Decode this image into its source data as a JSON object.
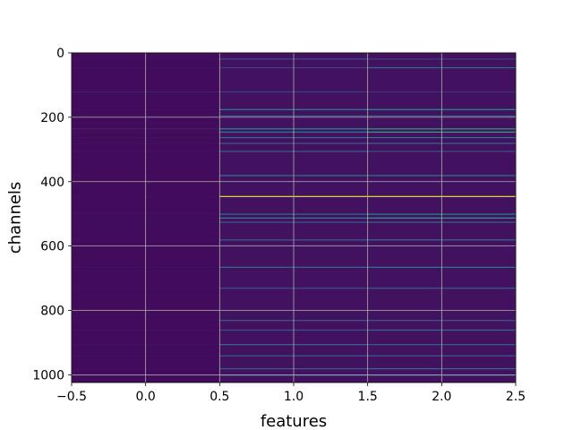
{
  "chart_data": {
    "type": "heatmap",
    "title": "",
    "xlabel": "features",
    "ylabel": "channels",
    "xlim": [
      -0.5,
      2.5
    ],
    "ylim": [
      1024,
      0
    ],
    "x_ticks": [
      -0.5,
      0.0,
      0.5,
      1.0,
      1.5,
      2.0,
      2.5
    ],
    "x_tick_labels": [
      "−0.5",
      "0.0",
      "0.5",
      "1.0",
      "1.5",
      "2.0",
      "2.5"
    ],
    "y_ticks": [
      0,
      200,
      400,
      600,
      800,
      1000
    ],
    "y_tick_labels": [
      "0",
      "200",
      "400",
      "600",
      "800",
      "1000"
    ],
    "grid": true,
    "colormap": "viridis",
    "columns": [
      0,
      1,
      2
    ],
    "n_channels": 1024,
    "base_values": [
      0.03,
      0.05,
      0.05
    ],
    "notable_rows": [
      {
        "channel": 18,
        "values": [
          0.05,
          0.25,
          0.2
        ]
      },
      {
        "channel": 45,
        "values": [
          0.05,
          0.2,
          0.35
        ]
      },
      {
        "channel": 120,
        "values": [
          0.1,
          0.2,
          0.15
        ]
      },
      {
        "channel": 175,
        "values": [
          0.05,
          0.45,
          0.5
        ]
      },
      {
        "channel": 195,
        "values": [
          0.05,
          0.3,
          0.3
        ]
      },
      {
        "channel": 235,
        "values": [
          0.1,
          0.5,
          0.55
        ]
      },
      {
        "channel": 245,
        "values": [
          0.05,
          0.45,
          0.6
        ]
      },
      {
        "channel": 262,
        "values": [
          0.05,
          0.35,
          0.4
        ]
      },
      {
        "channel": 280,
        "values": [
          0.05,
          0.3,
          0.35
        ]
      },
      {
        "channel": 305,
        "values": [
          0.05,
          0.3,
          0.25
        ]
      },
      {
        "channel": 380,
        "values": [
          0.05,
          0.4,
          0.4
        ]
      },
      {
        "channel": 445,
        "values": [
          0.05,
          0.95,
          0.95
        ]
      },
      {
        "channel": 500,
        "values": [
          0.05,
          0.35,
          0.45
        ]
      },
      {
        "channel": 512,
        "values": [
          0.05,
          0.45,
          0.55
        ]
      },
      {
        "channel": 525,
        "values": [
          0.05,
          0.3,
          0.35
        ]
      },
      {
        "channel": 580,
        "values": [
          0.05,
          0.3,
          0.35
        ]
      },
      {
        "channel": 665,
        "values": [
          0.05,
          0.35,
          0.4
        ]
      },
      {
        "channel": 730,
        "values": [
          0.05,
          0.25,
          0.3
        ]
      },
      {
        "channel": 830,
        "values": [
          0.05,
          0.3,
          0.3
        ]
      },
      {
        "channel": 860,
        "values": [
          0.05,
          0.25,
          0.35
        ]
      },
      {
        "channel": 905,
        "values": [
          0.05,
          0.35,
          0.3
        ]
      },
      {
        "channel": 940,
        "values": [
          0.05,
          0.3,
          0.3
        ]
      },
      {
        "channel": 980,
        "values": [
          0.05,
          0.3,
          0.35
        ]
      },
      {
        "channel": 1000,
        "values": [
          0.1,
          0.35,
          0.35
        ]
      }
    ]
  }
}
